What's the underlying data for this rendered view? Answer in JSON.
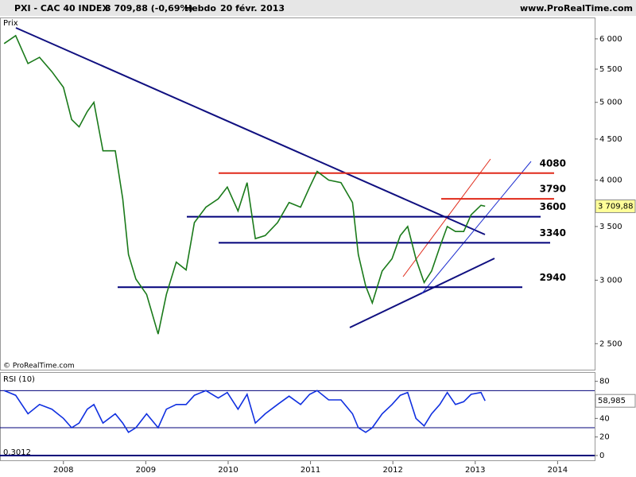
{
  "chart_data": [
    {
      "type": "line",
      "title": "PXI - CAC 40 INDEX",
      "subtitle": "3 709,88 (-0,69%)",
      "period": "Hebdo",
      "date": "20 févr. 2013",
      "source": "www.ProRealTime.com",
      "ylabel": "Prix",
      "copyright": "© ProRealTime.com",
      "log_scale": true,
      "xlim": [
        2007.23,
        2014.45
      ],
      "ylim": [
        2320,
        6380
      ],
      "yticks": [
        {
          "value": 2500,
          "label": "2 500"
        },
        {
          "value": 3000,
          "label": "3 000"
        },
        {
          "value": 3500,
          "label": "3 500"
        },
        {
          "value": 4000,
          "label": "4 000"
        },
        {
          "value": 4500,
          "label": "4 500"
        },
        {
          "value": 5000,
          "label": "5 000"
        },
        {
          "value": 5500,
          "label": "5 500"
        },
        {
          "value": 6000,
          "label": "6 000"
        }
      ],
      "x": [
        2007.28,
        2007.42,
        2007.57,
        2007.71,
        2007.86,
        2008,
        2008.1,
        2008.19,
        2008.29,
        2008.37,
        2008.48,
        2008.63,
        2008.72,
        2008.79,
        2008.88,
        2009.01,
        2009.15,
        2009.25,
        2009.37,
        2009.49,
        2009.59,
        2009.73,
        2009.88,
        2009.99,
        2010.12,
        2010.23,
        2010.33,
        2010.45,
        2010.6,
        2010.74,
        2010.88,
        2010.99,
        2011.08,
        2011.22,
        2011.37,
        2011.51,
        2011.58,
        2011.67,
        2011.75,
        2011.87,
        2011.99,
        2012.09,
        2012.18,
        2012.28,
        2012.38,
        2012.47,
        2012.57,
        2012.66,
        2012.76,
        2012.86,
        2012.95,
        2013.07,
        2013.12
      ],
      "series": [
        {
          "name": "CAC 40",
          "color": "#1a7a1a",
          "values": [
            5920,
            6057,
            5590,
            5690,
            5460,
            5220,
            4760,
            4660,
            4870,
            5000,
            4350,
            4350,
            3790,
            3230,
            3010,
            2880,
            2570,
            2880,
            3160,
            3090,
            3540,
            3700,
            3790,
            3920,
            3660,
            3970,
            3380,
            3410,
            3540,
            3750,
            3700,
            3920,
            4100,
            4000,
            3970,
            3750,
            3230,
            2950,
            2810,
            3080,
            3190,
            3410,
            3500,
            3190,
            2980,
            3080,
            3300,
            3500,
            3450,
            3450,
            3620,
            3720,
            3709.88
          ]
        }
      ],
      "levels": [
        {
          "value": 4080,
          "color": "#e02a1a"
        },
        {
          "value": 3790,
          "color": "#e02a1a"
        },
        {
          "value": 3600,
          "color": "#00007a"
        },
        {
          "value": 3340,
          "color": "#00007a"
        },
        {
          "value": 2940,
          "color": "#00007a"
        }
      ],
      "last_value": {
        "value": 3709.88,
        "label": "3 709,88"
      }
    },
    {
      "type": "line",
      "title": "RSI (10)",
      "note": "0,3012",
      "xlim": [
        2007.23,
        2014.45
      ],
      "ylim": [
        -6,
        90
      ],
      "yticks": [
        0,
        20,
        40,
        60,
        80
      ],
      "xticks": [
        2008,
        2009,
        2010,
        2011,
        2012,
        2013,
        2014
      ],
      "bands": [
        70,
        30,
        0
      ],
      "x": [
        2007.28,
        2007.42,
        2007.57,
        2007.71,
        2007.86,
        2008,
        2008.1,
        2008.19,
        2008.29,
        2008.37,
        2008.48,
        2008.63,
        2008.72,
        2008.79,
        2008.88,
        2009.01,
        2009.15,
        2009.25,
        2009.37,
        2009.49,
        2009.59,
        2009.73,
        2009.88,
        2009.99,
        2010.12,
        2010.23,
        2010.33,
        2010.45,
        2010.6,
        2010.74,
        2010.88,
        2010.99,
        2011.08,
        2011.22,
        2011.37,
        2011.51,
        2011.58,
        2011.67,
        2011.75,
        2011.87,
        2011.99,
        2012.09,
        2012.18,
        2012.28,
        2012.38,
        2012.47,
        2012.57,
        2012.66,
        2012.76,
        2012.86,
        2012.95,
        2013.07,
        2013.12
      ],
      "series": [
        {
          "name": "RSI",
          "color": "#1030e0",
          "values": [
            70,
            65,
            45,
            55,
            50,
            40,
            30,
            35,
            50,
            55,
            35,
            45,
            35,
            25,
            30,
            45,
            30,
            50,
            55,
            55,
            65,
            70,
            62,
            68,
            50,
            66,
            35,
            45,
            55,
            64,
            55,
            66,
            70,
            60,
            60,
            45,
            30,
            25,
            30,
            45,
            55,
            65,
            68,
            40,
            32,
            45,
            55,
            68,
            55,
            58,
            66,
            68,
            58.985
          ]
        }
      ],
      "last_value": {
        "value": 58.985,
        "label": "58,985"
      }
    }
  ]
}
